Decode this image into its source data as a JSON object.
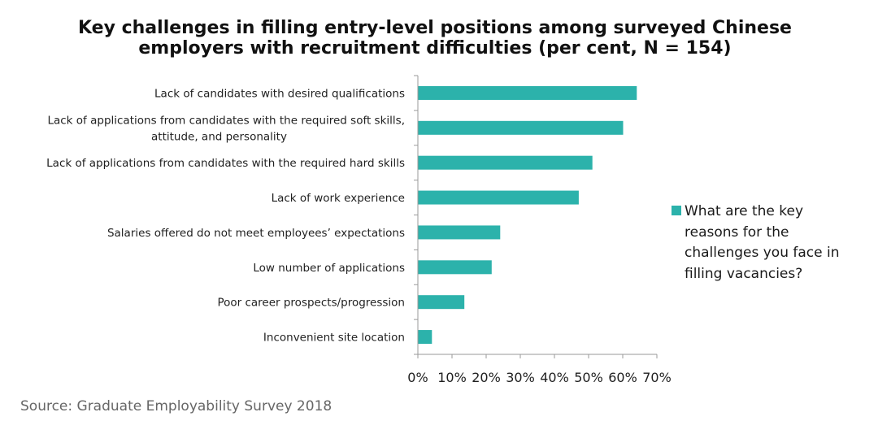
{
  "chart_data": {
    "type": "bar",
    "orientation": "horizontal",
    "title": [
      "Key challenges in filling entry-level positions among surveyed Chinese",
      "employers with recruitment difficulties (per cent, N = 154)"
    ],
    "categories": [
      [
        "Lack of candidates with desired qualifications"
      ],
      [
        "Lack of applications  from candidates with the required soft skills,",
        "attitude, and personality"
      ],
      [
        "Lack of applications  from candidates with the required hard skills"
      ],
      [
        "Lack of work experience"
      ],
      [
        "Salaries offered do not meet employees’ expectations"
      ],
      [
        "Low number  of applications"
      ],
      [
        "Poor career prospects/progression"
      ],
      [
        "Inconvenient site location"
      ]
    ],
    "series": [
      {
        "name": "What are the key reasons for the challenges you face in filling vacancies?",
        "values": [
          64,
          60,
          51,
          47,
          24,
          21.5,
          13.5,
          4
        ],
        "color": "#2cb2ab"
      }
    ],
    "xlim": [
      0,
      70
    ],
    "xticks": [
      "0%",
      "10%",
      "20%",
      "30%",
      "40%",
      "50%",
      "60%",
      "70%"
    ],
    "legend_position": "right"
  },
  "legend": {
    "lines": [
      "What are the key",
      "reasons for the",
      "challenges you face in",
      "filling vacancies?"
    ]
  },
  "source": "Source: Graduate Employability Survey 2018"
}
